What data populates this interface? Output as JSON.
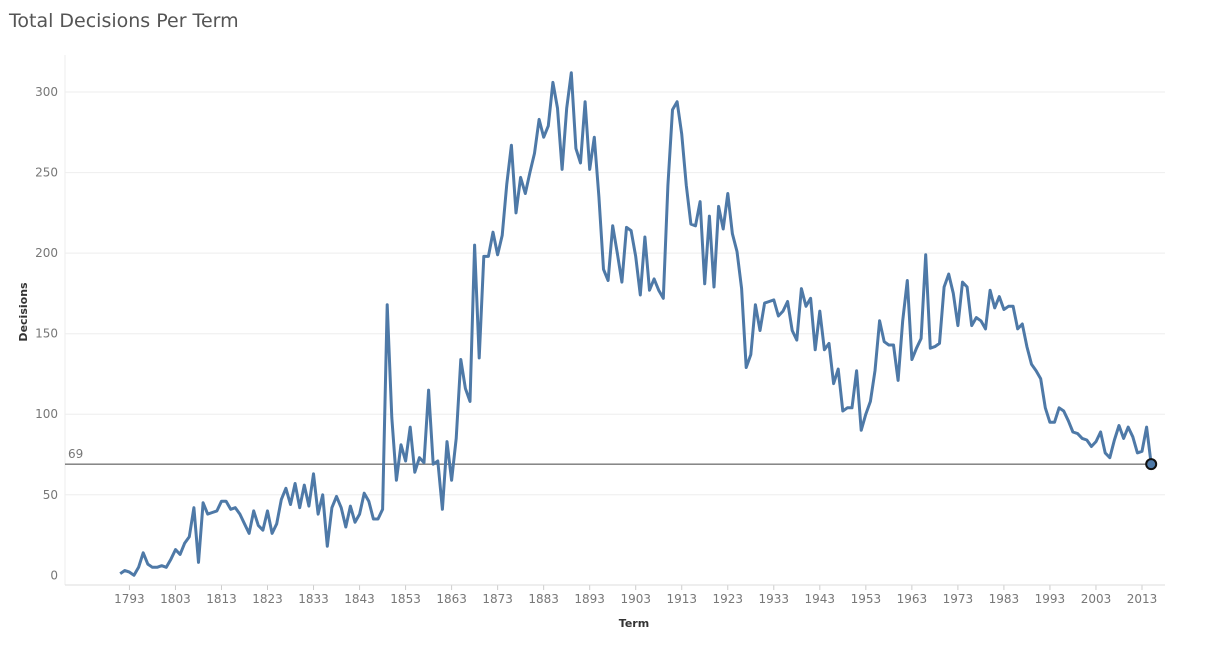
{
  "chart_data": {
    "type": "line",
    "title": "Total Decisions Per Term",
    "xlabel": "Term",
    "ylabel": "Decisions",
    "start_year": 1791,
    "values": [
      1,
      3,
      2,
      0,
      5,
      14,
      7,
      5,
      5,
      6,
      5,
      10,
      16,
      13,
      20,
      24,
      42,
      8,
      45,
      38,
      39,
      40,
      46,
      46,
      41,
      42,
      38,
      32,
      26,
      40,
      31,
      28,
      40,
      26,
      32,
      47,
      54,
      44,
      57,
      42,
      56,
      43,
      63,
      38,
      50,
      18,
      42,
      49,
      42,
      30,
      43,
      33,
      38,
      51,
      46,
      35,
      35,
      41,
      168,
      98,
      59,
      81,
      71,
      92,
      64,
      73,
      70,
      115,
      69,
      71,
      41,
      83,
      59,
      85,
      134,
      116,
      108,
      205,
      135,
      198,
      198,
      213,
      199,
      211,
      243,
      267,
      225,
      247,
      237,
      250,
      262,
      283,
      272,
      279,
      306,
      290,
      252,
      290,
      312,
      265,
      256,
      294,
      252,
      272,
      235,
      190,
      183,
      217,
      200,
      182,
      216,
      214,
      198,
      174,
      210,
      177,
      184,
      177,
      172,
      242,
      289,
      294,
      274,
      242,
      218,
      217,
      232,
      181,
      223,
      179,
      229,
      215,
      237,
      212,
      201,
      178,
      129,
      137,
      168,
      152,
      169,
      170,
      171,
      161,
      164,
      170,
      152,
      146,
      178,
      167,
      172,
      140,
      164,
      140,
      144,
      119,
      128,
      102,
      104,
      104,
      127,
      90,
      100,
      108,
      127,
      158,
      145,
      143,
      143,
      121,
      158,
      183,
      134,
      141,
      147,
      199,
      141,
      142,
      144,
      179,
      187,
      175,
      155,
      182,
      179,
      155,
      160,
      158,
      153,
      177,
      166,
      173,
      165,
      167,
      167,
      153,
      156,
      142,
      131,
      127,
      122,
      104,
      95,
      95,
      104,
      102,
      96,
      89,
      88,
      85,
      84,
      80,
      83,
      89,
      76,
      73,
      84,
      93,
      85,
      92,
      86,
      76,
      77,
      92,
      69
    ],
    "xlim": [
      1779,
      2018
    ],
    "ylim": [
      -6,
      323
    ],
    "x_ticks": [
      "1793",
      "1803",
      "1813",
      "1823",
      "1833",
      "1843",
      "1853",
      "1863",
      "1873",
      "1883",
      "1893",
      "1903",
      "1913",
      "1923",
      "1933",
      "1943",
      "1953",
      "1963",
      "1973",
      "1983",
      "1993",
      "2003",
      "2013"
    ],
    "y_ticks": [
      "0",
      "50",
      "100",
      "150",
      "200",
      "250",
      "300"
    ],
    "reference_line": {
      "value": 69,
      "label": "69"
    },
    "grid": true,
    "line_color": "#4e79a7"
  }
}
